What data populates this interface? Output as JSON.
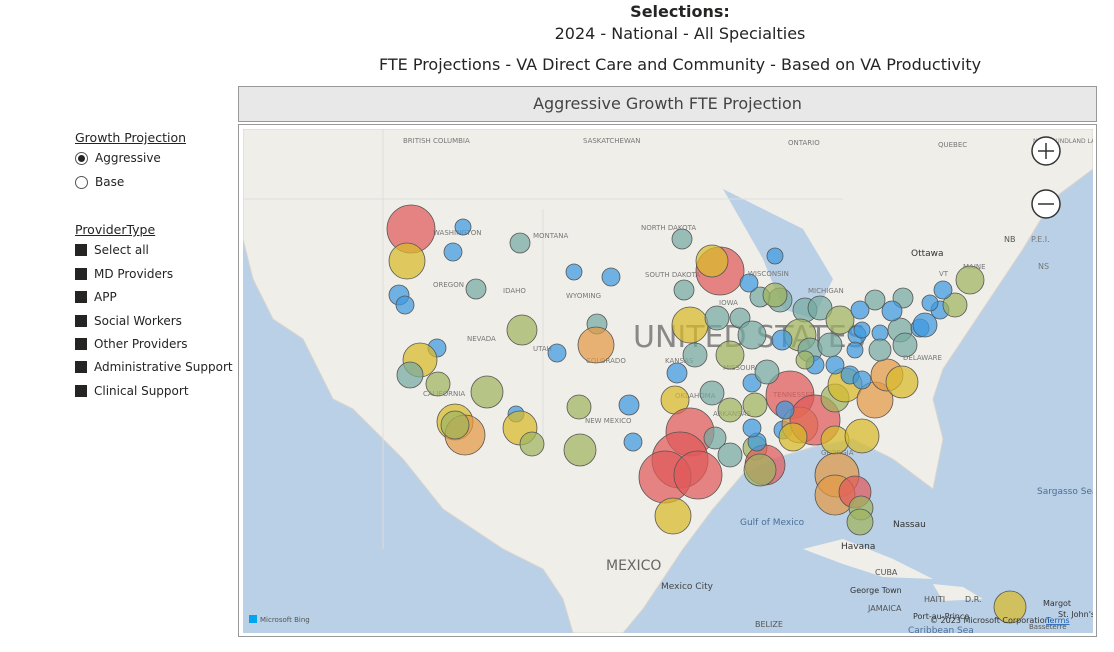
{
  "header": {
    "title": "Selections:",
    "subtitle": "2024 - National - All Specialties",
    "description": "FTE Projections - VA Direct Care and Community - Based on VA Productivity"
  },
  "banner": {
    "title": "Aggressive Growth FTE Projection"
  },
  "filters": {
    "growth": {
      "title": "Growth Projection",
      "options": [
        "Aggressive",
        "Base"
      ],
      "selected": "Aggressive"
    },
    "provider": {
      "title": "ProviderType",
      "options": [
        "Select all",
        "MD Providers",
        "APP",
        "Social Workers",
        "Other Providers",
        "Administrative Support",
        "Clinical Support"
      ]
    }
  },
  "map": {
    "labels": [
      "BRITISH COLUMBIA",
      "SASKATCHEWAN",
      "ONTARIO",
      "QUEBEC",
      "NEWFOUNDLAND LABRADOR",
      "WASHINGTON",
      "MONTANA",
      "NORTH DAKOTA",
      "OREGON",
      "IDAHO",
      "WYOMING",
      "SOUTH DAKOTA",
      "WISCONSIN",
      "MICHIGAN",
      "IOWA",
      "NEVADA",
      "UTAH",
      "COLORADO",
      "KANSAS",
      "MISSOURI",
      "CALIFORNIA",
      "NEW MEXICO",
      "OKLAHOMA",
      "ARKANSAS",
      "TENNESSEE",
      "GEORGIA",
      "DELAWARE",
      "VT",
      "MAINE",
      "NB",
      "P.E.I.",
      "NS",
      "Ottawa",
      "UNITED STATES",
      "MEXICO",
      "Mexico City",
      "Gulf of Mexico",
      "Havana",
      "Nassau",
      "CUBA",
      "George Town",
      "JAMAICA",
      "HAITI",
      "D.R.",
      "Port-au-Prince",
      "Sargasso Sea",
      "Margot",
      "St. John's",
      "Basseterre",
      "Caribbean Sea",
      "BELIZE"
    ],
    "attribution": "Microsoft Bing",
    "copyright": "© 2023 Microsoft Corporation",
    "terms": "Terms"
  }
}
